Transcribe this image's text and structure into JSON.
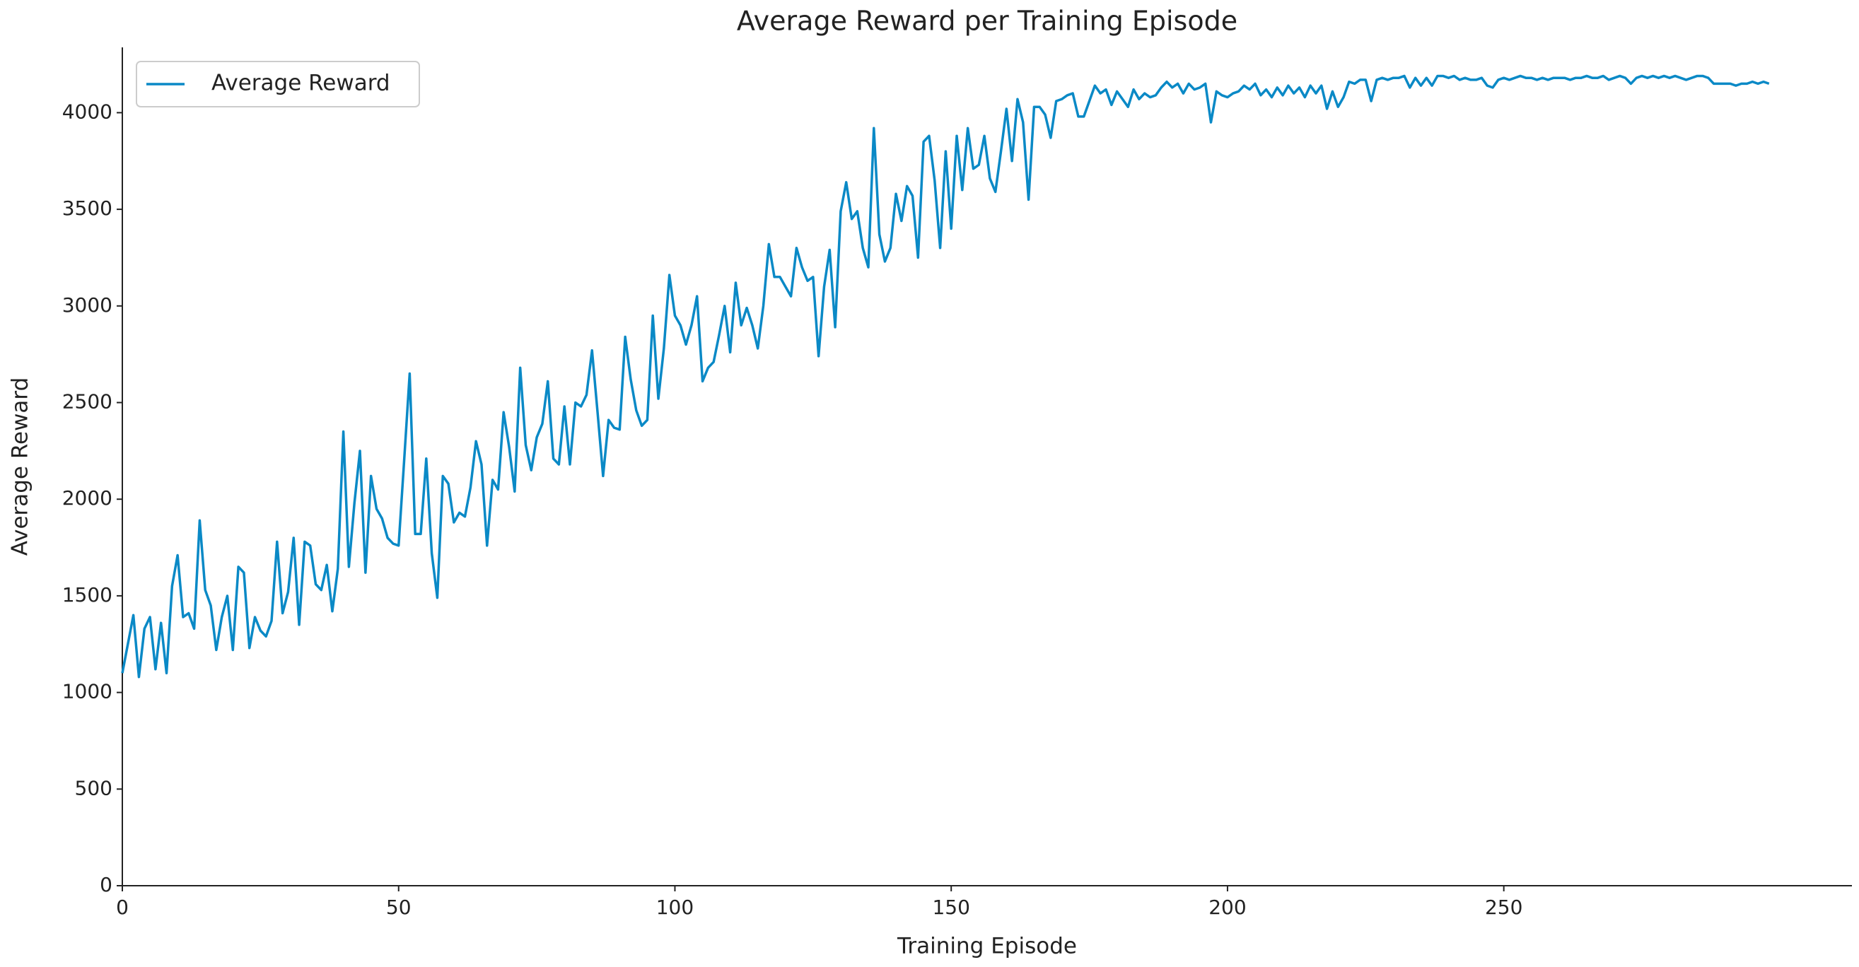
{
  "chart_data": {
    "type": "line",
    "title": "Average Reward per Training Episode",
    "x_label": "Training Episode",
    "y_label": "Average Reward",
    "xlim": [
      0,
      313
    ],
    "xticks": [
      0,
      50,
      100,
      150,
      200,
      250
    ],
    "ylim": [
      0,
      4338
    ],
    "yticks": [
      0,
      500,
      1000,
      1500,
      2000,
      2500,
      3000,
      3500,
      4000
    ],
    "legend": "upper left",
    "x": [
      0,
      1,
      2,
      3,
      4,
      5,
      6,
      7,
      8,
      9,
      10,
      11,
      12,
      13,
      14,
      15,
      16,
      17,
      18,
      19,
      20,
      21,
      22,
      23,
      24,
      25,
      26,
      27,
      28,
      29,
      30,
      31,
      32,
      33,
      34,
      35,
      36,
      37,
      38,
      39,
      40,
      41,
      42,
      43,
      44,
      45,
      46,
      47,
      48,
      49,
      50,
      51,
      52,
      53,
      54,
      55,
      56,
      57,
      58,
      59,
      60,
      61,
      62,
      63,
      64,
      65,
      66,
      67,
      68,
      69,
      70,
      71,
      72,
      73,
      74,
      75,
      76,
      77,
      78,
      79,
      80,
      81,
      82,
      83,
      84,
      85,
      86,
      87,
      88,
      89,
      90,
      91,
      92,
      93,
      94,
      95,
      96,
      97,
      98,
      99,
      100,
      101,
      102,
      103,
      104,
      105,
      106,
      107,
      108,
      109,
      110,
      111,
      112,
      113,
      114,
      115,
      116,
      117,
      118,
      119,
      120,
      121,
      122,
      123,
      124,
      125,
      126,
      127,
      128,
      129,
      130,
      131,
      132,
      133,
      134,
      135,
      136,
      137,
      138,
      139,
      140,
      141,
      142,
      143,
      144,
      145,
      146,
      147,
      148,
      149,
      150,
      151,
      152,
      153,
      154,
      155,
      156,
      157,
      158,
      159,
      160,
      161,
      162,
      163,
      164,
      165,
      166,
      167,
      168,
      169,
      170,
      171,
      172,
      173,
      174,
      175,
      176,
      177,
      178,
      179,
      180,
      181,
      182,
      183,
      184,
      185,
      186,
      187,
      188,
      189,
      190,
      191,
      192,
      193,
      194,
      195,
      196,
      197,
      198,
      199,
      200,
      201,
      202,
      203,
      204,
      205,
      206,
      207,
      208,
      209,
      210,
      211,
      212,
      213,
      214,
      215,
      216,
      217,
      218,
      219,
      220,
      221,
      222,
      223,
      224,
      225,
      226,
      227,
      228,
      229,
      230,
      231,
      232,
      233,
      234,
      235,
      236,
      237,
      238,
      239,
      240,
      241,
      242,
      243,
      244,
      245,
      246,
      247,
      248,
      249,
      250,
      251,
      252,
      253,
      254,
      255,
      256,
      257,
      258,
      259,
      260,
      261,
      262,
      263,
      264,
      265,
      266,
      267,
      268,
      269,
      270,
      271,
      272,
      273,
      274,
      275,
      276,
      277,
      278,
      279,
      280,
      281,
      282,
      283,
      284,
      285,
      286,
      287,
      288,
      289,
      290,
      291,
      292,
      293,
      294,
      295,
      296,
      297,
      298
    ],
    "series": [
      {
        "name": "Average Reward",
        "color": "#0a89c6",
        "values": [
          1100,
          1250,
          1400,
          1080,
          1330,
          1390,
          1120,
          1360,
          1100,
          1550,
          1710,
          1390,
          1410,
          1330,
          1890,
          1530,
          1450,
          1220,
          1390,
          1500,
          1220,
          1650,
          1620,
          1230,
          1390,
          1320,
          1290,
          1370,
          1780,
          1410,
          1520,
          1800,
          1350,
          1780,
          1760,
          1560,
          1530,
          1660,
          1420,
          1640,
          2350,
          1650,
          1980,
          2250,
          1620,
          2120,
          1950,
          1900,
          1800,
          1770,
          1760,
          2200,
          2650,
          1820,
          1820,
          2210,
          1720,
          1490,
          2120,
          2080,
          1880,
          1930,
          1910,
          2060,
          2300,
          2180,
          1760,
          2100,
          2050,
          2450,
          2270,
          2040,
          2680,
          2280,
          2150,
          2320,
          2390,
          2610,
          2210,
          2180,
          2480,
          2180,
          2500,
          2480,
          2540,
          2770,
          2450,
          2120,
          2410,
          2370,
          2360,
          2840,
          2620,
          2460,
          2380,
          2410,
          2950,
          2520,
          2780,
          3160,
          2950,
          2900,
          2800,
          2900,
          3050,
          2610,
          2680,
          2710,
          2850,
          3000,
          2760,
          3120,
          2900,
          2990,
          2900,
          2780,
          3000,
          3320,
          3150,
          3150,
          3100,
          3050,
          3300,
          3200,
          3130,
          3150,
          2740,
          3100,
          3290,
          2890,
          3490,
          3640,
          3450,
          3490,
          3300,
          3200,
          3920,
          3370,
          3230,
          3300,
          3580,
          3440,
          3620,
          3570,
          3250,
          3850,
          3880,
          3650,
          3300,
          3800,
          3400,
          3880,
          3600,
          3920,
          3710,
          3730,
          3880,
          3660,
          3590,
          3800,
          4020,
          3750,
          4070,
          3950,
          3550,
          4030,
          4030,
          3990,
          3870,
          4060,
          4070,
          4090,
          4100,
          3980,
          3980,
          4060,
          4140,
          4100,
          4120,
          4040,
          4110,
          4070,
          4030,
          4120,
          4070,
          4100,
          4080,
          4090,
          4130,
          4160,
          4130,
          4150,
          4100,
          4150,
          4120,
          4130,
          4150,
          3950,
          4110,
          4090,
          4080,
          4100,
          4110,
          4140,
          4120,
          4150,
          4090,
          4120,
          4080,
          4130,
          4090,
          4140,
          4100,
          4130,
          4080,
          4140,
          4100,
          4140,
          4020,
          4110,
          4030,
          4080,
          4160,
          4150,
          4170,
          4170,
          4060,
          4170,
          4180,
          4170,
          4180,
          4180,
          4190,
          4130,
          4180,
          4140,
          4180,
          4140,
          4190,
          4190,
          4180,
          4190,
          4170,
          4180,
          4170,
          4170,
          4180,
          4140,
          4130,
          4170,
          4180,
          4170,
          4180,
          4190,
          4180,
          4180,
          4170,
          4180,
          4170,
          4180,
          4180,
          4180,
          4170,
          4180,
          4180,
          4190,
          4180,
          4180,
          4190,
          4170,
          4180,
          4190,
          4180,
          4150,
          4180,
          4190,
          4180,
          4190,
          4180,
          4190,
          4180,
          4190,
          4180,
          4170,
          4180,
          4190,
          4190,
          4180,
          4150,
          4150,
          4150,
          4150,
          4140,
          4150,
          4150,
          4160,
          4150,
          4160,
          4150
        ]
      }
    ]
  }
}
